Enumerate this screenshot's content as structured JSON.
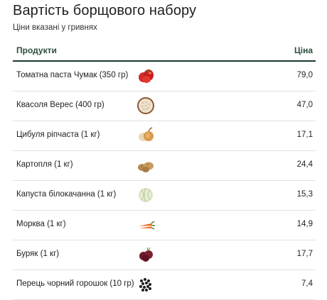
{
  "page": {
    "title": "Вартість борщового набору",
    "subtitle": "Ціни вказані у гривнях"
  },
  "table": {
    "headers": {
      "product": "Продукти",
      "price": "Ціна"
    },
    "rows": [
      {
        "name": "Томатна паста Чумак (350 гр)",
        "price": "79,0",
        "icon": "tomato-icon"
      },
      {
        "name": "Квасоля Верес (400 гр)",
        "price": "47,0",
        "icon": "beans-jar-icon"
      },
      {
        "name": "Цибуля ріпчаста (1 кг)",
        "price": "17,1",
        "icon": "onion-icon"
      },
      {
        "name": "Картопля (1 кг)",
        "price": "24,4",
        "icon": "potato-icon"
      },
      {
        "name": "Капуста білокачанна (1 кг)",
        "price": "15,3",
        "icon": "cabbage-icon"
      },
      {
        "name": "Морква (1 кг)",
        "price": "14,9",
        "icon": "carrot-icon"
      },
      {
        "name": "Буряк (1 кг)",
        "price": "17,7",
        "icon": "beet-icon"
      },
      {
        "name": "Перець чорний горошок (10 гр)",
        "price": "7,4",
        "icon": "peppercorn-icon"
      }
    ]
  },
  "colors": {
    "header_rule": "#1c3a2c",
    "header_text": "#2c4d3a",
    "row_divider": "#e2e2e2"
  }
}
